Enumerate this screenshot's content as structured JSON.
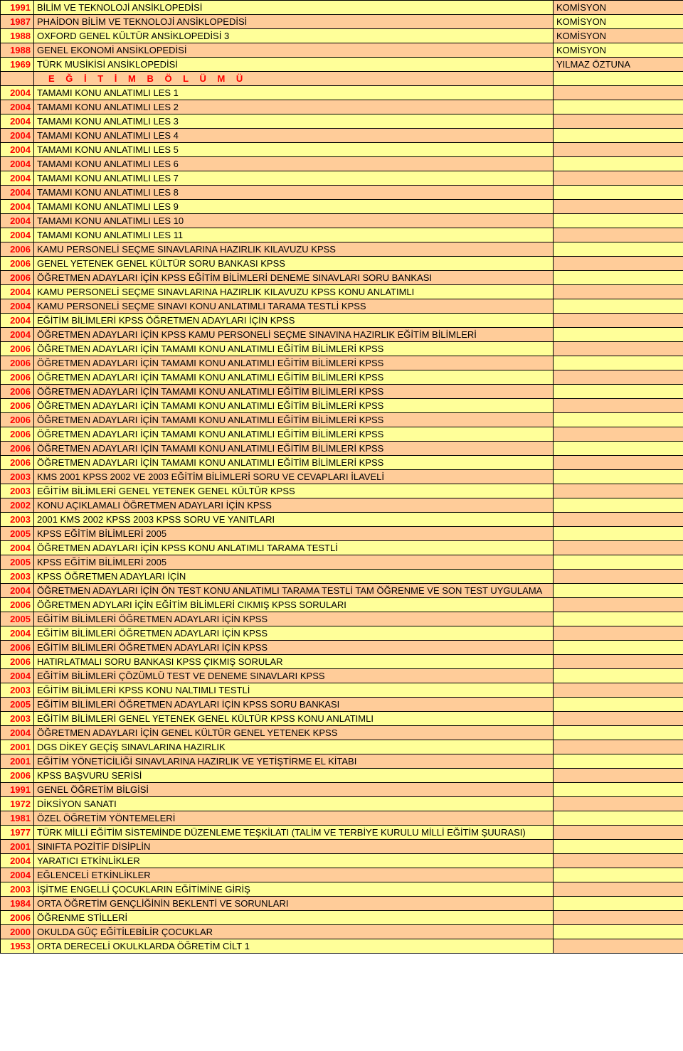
{
  "colors": {
    "yellow": "#ffff99",
    "peach": "#ffcc99",
    "border": "#000000",
    "red": "#ff0000",
    "white": "#ffffff"
  },
  "font": {
    "family": "Arial",
    "size": 13
  },
  "columns": {
    "year_width": 47,
    "title_width": 730,
    "author_width": 183
  },
  "rows": [
    {
      "year": "1991",
      "title": "BİLİM VE TEKNOLOJİ ANSİKLOPEDİSİ",
      "author": "KOMİSYON",
      "c1": "yellow",
      "c2": "yellow",
      "c3": "peach"
    },
    {
      "year": "1987",
      "title": "PHAİDON BİLİM VE TEKNOLOJİ ANSİKLOPEDİSİ",
      "author": "KOMİSYON",
      "c1": "peach",
      "c2": "peach",
      "c3": "yellow"
    },
    {
      "year": "1988",
      "title": "OXFORD GENEL KÜLTÜR ANSİKLOPEDİSİ 3",
      "author": "KOMİSYON",
      "c1": "yellow",
      "c2": "yellow",
      "c3": "peach"
    },
    {
      "year": "1988",
      "title": "GENEL EKONOMİ ANSİKLOPEDİSİ",
      "author": "KOMİSYON",
      "c1": "peach",
      "c2": "peach",
      "c3": "yellow"
    },
    {
      "year": "1969",
      "title": "TÜRK MUSİKİSİ ANSİKLOPEDİSİ",
      "author": "YILMAZ ÖZTUNA",
      "c1": "yellow",
      "c2": "yellow",
      "c3": "peach"
    },
    {
      "year": "",
      "title": "E Ğ İ T İ M   B Ö L Ü M Ü",
      "author": "",
      "c1": "peach",
      "c2": "peach",
      "c3": "yellow",
      "section": true
    },
    {
      "year": "2004",
      "title": "TAMAMI KONU ANLATIMLI LES 1",
      "author": "",
      "c1": "yellow",
      "c2": "yellow",
      "c3": "peach"
    },
    {
      "year": "2004",
      "title": "TAMAMI KONU ANLATIMLI LES 2",
      "author": "",
      "c1": "peach",
      "c2": "peach",
      "c3": "yellow"
    },
    {
      "year": "2004",
      "title": "TAMAMI KONU ANLATIMLI LES 3",
      "author": "",
      "c1": "yellow",
      "c2": "yellow",
      "c3": "peach"
    },
    {
      "year": "2004",
      "title": "TAMAMI KONU ANLATIMLI LES 4",
      "author": "",
      "c1": "peach",
      "c2": "peach",
      "c3": "yellow"
    },
    {
      "year": "2004",
      "title": "TAMAMI KONU ANLATIMLI LES 5",
      "author": "",
      "c1": "yellow",
      "c2": "yellow",
      "c3": "peach"
    },
    {
      "year": "2004",
      "title": "TAMAMI KONU ANLATIMLI LES 6",
      "author": "",
      "c1": "peach",
      "c2": "peach",
      "c3": "yellow"
    },
    {
      "year": "2004",
      "title": "TAMAMI KONU ANLATIMLI LES 7",
      "author": "",
      "c1": "yellow",
      "c2": "yellow",
      "c3": "peach"
    },
    {
      "year": "2004",
      "title": "TAMAMI KONU ANLATIMLI LES 8",
      "author": "",
      "c1": "peach",
      "c2": "peach",
      "c3": "yellow"
    },
    {
      "year": "2004",
      "title": "TAMAMI KONU ANLATIMLI LES 9",
      "author": "",
      "c1": "yellow",
      "c2": "yellow",
      "c3": "peach"
    },
    {
      "year": "2004",
      "title": "TAMAMI KONU ANLATIMLI LES 10",
      "author": "",
      "c1": "peach",
      "c2": "peach",
      "c3": "yellow"
    },
    {
      "year": "2004",
      "title": "TAMAMI KONU ANLATIMLI LES 11",
      "author": "",
      "c1": "yellow",
      "c2": "yellow",
      "c3": "peach"
    },
    {
      "year": "2006",
      "title": "KAMU PERSONELİ SEÇME SINAVLARINA HAZIRLIK KILAVUZU KPSS",
      "author": "",
      "c1": "peach",
      "c2": "peach",
      "c3": "yellow"
    },
    {
      "year": "2006",
      "title": "GENEL YETENEK GENEL KÜLTÜR SORU BANKASI KPSS",
      "author": "",
      "c1": "yellow",
      "c2": "yellow",
      "c3": "peach"
    },
    {
      "year": "2006",
      "title": "ÖĞRETMEN ADAYLARI İÇİN KPSS EĞİTİM BİLİMLERİ DENEME SINAVLARI SORU BANKASI",
      "author": "",
      "c1": "peach",
      "c2": "peach",
      "c3": "yellow"
    },
    {
      "year": "2004",
      "title": "KAMU PERSONELİ SEÇME SINAVLARINA HAZIRLIK KILAVUZU KPSS KONU ANLATIMLI",
      "author": "",
      "c1": "yellow",
      "c2": "yellow",
      "c3": "peach"
    },
    {
      "year": "2004",
      "title": "KAMU PERSONELİ SEÇME SINAVI KONU ANLATIMLI TARAMA TESTLİ KPSS",
      "author": "",
      "c1": "peach",
      "c2": "peach",
      "c3": "yellow"
    },
    {
      "year": "2004",
      "title": "EĞİTİM BİLİMLERİ KPSS ÖĞRETMEN ADAYLARI İÇİN KPSS",
      "author": "",
      "c1": "yellow",
      "c2": "yellow",
      "c3": "peach"
    },
    {
      "year": "2004",
      "title": "ÖĞRETMEN ADAYLARI İÇİN KPSS KAMU PERSONELİ SEÇME SINAVINA HAZIRLIK EĞİTİM BİLİMLERİ",
      "author": "",
      "c1": "peach",
      "c2": "peach",
      "c3": "yellow"
    },
    {
      "year": "2006",
      "title": "ÖĞRETMEN ADAYLARI İÇİN TAMAMI KONU ANLATIMLI EĞİTİM BİLİMLERİ KPSS",
      "author": "",
      "c1": "yellow",
      "c2": "yellow",
      "c3": "peach"
    },
    {
      "year": "2006",
      "title": "ÖĞRETMEN ADAYLARI İÇİN TAMAMI KONU ANLATIMLI EĞİTİM BİLİMLERİ KPSS",
      "author": "",
      "c1": "peach",
      "c2": "peach",
      "c3": "yellow"
    },
    {
      "year": "2006",
      "title": "ÖĞRETMEN ADAYLARI İÇİN TAMAMI KONU ANLATIMLI EĞİTİM BİLİMLERİ KPSS",
      "author": "",
      "c1": "yellow",
      "c2": "yellow",
      "c3": "peach"
    },
    {
      "year": "2006",
      "title": "ÖĞRETMEN ADAYLARI İÇİN TAMAMI KONU ANLATIMLI EĞİTİM BİLİMLERİ KPSS",
      "author": "",
      "c1": "peach",
      "c2": "peach",
      "c3": "yellow"
    },
    {
      "year": "2006",
      "title": "ÖĞRETMEN ADAYLARI İÇİN TAMAMI KONU ANLATIMLI EĞİTİM BİLİMLERİ KPSS",
      "author": "",
      "c1": "yellow",
      "c2": "yellow",
      "c3": "peach"
    },
    {
      "year": "2006",
      "title": "ÖĞRETMEN ADAYLARI İÇİN TAMAMI KONU ANLATIMLI EĞİTİM BİLİMLERİ KPSS",
      "author": "",
      "c1": "peach",
      "c2": "peach",
      "c3": "yellow"
    },
    {
      "year": "2006",
      "title": "ÖĞRETMEN ADAYLARI İÇİN TAMAMI KONU ANLATIMLI EĞİTİM BİLİMLERİ KPSS",
      "author": "",
      "c1": "yellow",
      "c2": "yellow",
      "c3": "peach"
    },
    {
      "year": "2006",
      "title": "ÖĞRETMEN ADAYLARI İÇİN TAMAMI KONU ANLATIMLI EĞİTİM BİLİMLERİ KPSS",
      "author": "",
      "c1": "peach",
      "c2": "peach",
      "c3": "yellow"
    },
    {
      "year": "2006",
      "title": "ÖĞRETMEN ADAYLARI İÇİN TAMAMI KONU ANLATIMLI EĞİTİM BİLİMLERİ KPSS",
      "author": "",
      "c1": "yellow",
      "c2": "yellow",
      "c3": "peach"
    },
    {
      "year": "2003",
      "title": "KMS 2001 KPSS 2002 VE 2003 EĞİTİM BİLİMLERİ SORU VE CEVAPLARI İLAVELİ",
      "author": "",
      "c1": "peach",
      "c2": "peach",
      "c3": "yellow"
    },
    {
      "year": "2003",
      "title": "EĞİTİM BİLİMLERİ GENEL YETENEK GENEL KÜLTÜR KPSS",
      "author": "",
      "c1": "yellow",
      "c2": "yellow",
      "c3": "peach"
    },
    {
      "year": "2002",
      "title": "KONU AÇIKLAMALI ÖĞRETMEN ADAYLARI İÇİN KPSS",
      "author": "",
      "c1": "peach",
      "c2": "peach",
      "c3": "yellow"
    },
    {
      "year": "2003",
      "title": "2001 KMS 2002 KPSS 2003 KPSS SORU VE YANITLARI",
      "author": "",
      "c1": "yellow",
      "c2": "yellow",
      "c3": "peach"
    },
    {
      "year": "2005",
      "title": "KPSS EĞİTİM BİLİMLERİ 2005",
      "author": "",
      "c1": "peach",
      "c2": "peach",
      "c3": "yellow"
    },
    {
      "year": "2004",
      "title": "ÖĞRETMEN ADAYLARI İÇİN KPSS KONU ANLATIMLI TARAMA TESTLİ",
      "author": "",
      "c1": "yellow",
      "c2": "yellow",
      "c3": "peach"
    },
    {
      "year": "2005",
      "title": "KPSS EĞİTİM BİLİMLERİ 2005",
      "author": "",
      "c1": "peach",
      "c2": "peach",
      "c3": "yellow"
    },
    {
      "year": "2003",
      "title": "KPSS ÖĞRETMEN ADAYLARI İÇİN",
      "author": "",
      "c1": "yellow",
      "c2": "yellow",
      "c3": "peach"
    },
    {
      "year": "2004",
      "title": "ÖĞRETMEN ADAYLARI İÇİN ÖN TEST KONU ANLATIMLI TARAMA TESTLİ TAM ÖĞRENME VE SON TEST UYGULAMA",
      "author": "",
      "c1": "peach",
      "c2": "peach",
      "c3": "yellow"
    },
    {
      "year": "2006",
      "title": "ÖĞRETMEN ADYLARI İÇİN EĞİTİM BİLİMLERİ  CIKMIŞ KPSS SORULARI",
      "author": "",
      "c1": "yellow",
      "c2": "yellow",
      "c3": "peach"
    },
    {
      "year": "2005",
      "title": "EĞİTİM BİLİMLERİ  ÖĞRETMEN ADAYLARI İÇİN KPSS",
      "author": "",
      "c1": "peach",
      "c2": "peach",
      "c3": "yellow"
    },
    {
      "year": "2004",
      "title": "EĞİTİM BİLİMLERİ  ÖĞRETMEN ADAYLARI İÇİN KPSS",
      "author": "",
      "c1": "yellow",
      "c2": "yellow",
      "c3": "peach"
    },
    {
      "year": "2006",
      "title": "EĞİTİM BİLİMLERİ ÖĞRETMEN ADAYLARI İÇİN KPSS",
      "author": "",
      "c1": "peach",
      "c2": "peach",
      "c3": "yellow"
    },
    {
      "year": "2006",
      "title": " HATIRLATMALI SORU BANKASI KPSS ÇIKMIŞ SORULAR",
      "author": "",
      "c1": "yellow",
      "c2": "yellow",
      "c3": "peach"
    },
    {
      "year": "2004",
      "title": "EĞİTİM BİLİMLERİ ÇÖZÜMLÜ TEST VE DENEME SINAVLARI KPSS",
      "author": "",
      "c1": "peach",
      "c2": "peach",
      "c3": "yellow"
    },
    {
      "year": "2003",
      "title": "EĞİTİM BİLİMLERİ KPSS KONU NALTIMLI TESTLİ",
      "author": "",
      "c1": "yellow",
      "c2": "yellow",
      "c3": "peach"
    },
    {
      "year": "2005",
      "title": "EĞİTİM BİLİMLERİ ÖĞRETMEN ADAYLARI İÇİN KPSS SORU BANKASI",
      "author": "",
      "c1": "peach",
      "c2": "peach",
      "c3": "yellow"
    },
    {
      "year": "2003",
      "title": "EĞİTİM BİLİMLERİ GENEL YETENEK GENEL KÜLTÜR KPSS KONU ANLATIMLI",
      "author": "",
      "c1": "yellow",
      "c2": "yellow",
      "c3": "peach"
    },
    {
      "year": "2004",
      "title": "ÖĞRETMEN ADAYLARI İÇİN GENEL KÜLTÜR GENEL YETENEK KPSS",
      "author": "",
      "c1": "peach",
      "c2": "peach",
      "c3": "yellow"
    },
    {
      "year": "2001",
      "title": "DGS DİKEY GEÇİŞ SINAVLARINA HAZIRLIK",
      "author": "",
      "c1": "yellow",
      "c2": "yellow",
      "c3": "peach"
    },
    {
      "year": "2001",
      "title": "EĞİTİM YÖNETİCİLİĞİ SINAVLARINA HAZIRLIK VE YETİŞTİRME EL KİTABI",
      "author": "",
      "c1": "peach",
      "c2": "peach",
      "c3": "yellow"
    },
    {
      "year": "2006",
      "title": "KPSS BAŞVURU SERİSİ",
      "author": "",
      "c1": "yellow",
      "c2": "yellow",
      "c3": "peach"
    },
    {
      "year": "1991",
      "title": "GENEL ÖĞRETİM BİLGİSİ",
      "author": "",
      "c1": "peach",
      "c2": "peach",
      "c3": "yellow"
    },
    {
      "year": "1972",
      "title": "DİKSİYON SANATI",
      "author": "",
      "c1": "yellow",
      "c2": "yellow",
      "c3": "peach"
    },
    {
      "year": "1981",
      "title": "ÖZEL ÖĞRETİM YÖNTEMELERİ",
      "author": "",
      "c1": "peach",
      "c2": "peach",
      "c3": "yellow"
    },
    {
      "year": "1977",
      "title": "TÜRK MİLLİ EĞİTİM SİSTEMİNDE DÜZENLEME TEŞKİLATI (TALİM VE TERBİYE KURULU MİLLİ EĞİTİM ŞUURASI)",
      "author": "",
      "c1": "yellow",
      "c2": "yellow",
      "c3": "peach"
    },
    {
      "year": "2001",
      "title": "SINIFTA POZİTİF DİSİPLİN",
      "author": "",
      "c1": "peach",
      "c2": "peach",
      "c3": "yellow"
    },
    {
      "year": "2004",
      "title": "YARATICI ETKİNLİKLER",
      "author": "",
      "c1": "yellow",
      "c2": "yellow",
      "c3": "peach"
    },
    {
      "year": "2004",
      "title": "EĞLENCELİ ETKİNLİKLER",
      "author": "",
      "c1": "peach",
      "c2": "peach",
      "c3": "yellow"
    },
    {
      "year": "2003",
      "title": "İŞİTME ENGELLİ ÇOCUKLARIN EĞİTİMİNE GİRİŞ",
      "author": "",
      "c1": "yellow",
      "c2": "yellow",
      "c3": "peach"
    },
    {
      "year": "1984",
      "title": "ORTA ÖĞRETİM GENÇLİĞİNİN BEKLENTİ VE SORUNLARI",
      "author": "",
      "c1": "peach",
      "c2": "peach",
      "c3": "yellow"
    },
    {
      "year": "2006",
      "title": "ÖĞRENME STİLLERİ",
      "author": "",
      "c1": "yellow",
      "c2": "yellow",
      "c3": "peach"
    },
    {
      "year": "2000",
      "title": "OKULDA GÜÇ EĞİTİLEBİLİR ÇOCUKLAR",
      "author": "",
      "c1": "peach",
      "c2": "peach",
      "c3": "yellow"
    },
    {
      "year": "1953",
      "title": "ORTA DERECELİ OKULKLARDA ÖĞRETİM CİLT 1",
      "author": "",
      "c1": "yellow",
      "c2": "yellow",
      "c3": "peach"
    }
  ]
}
